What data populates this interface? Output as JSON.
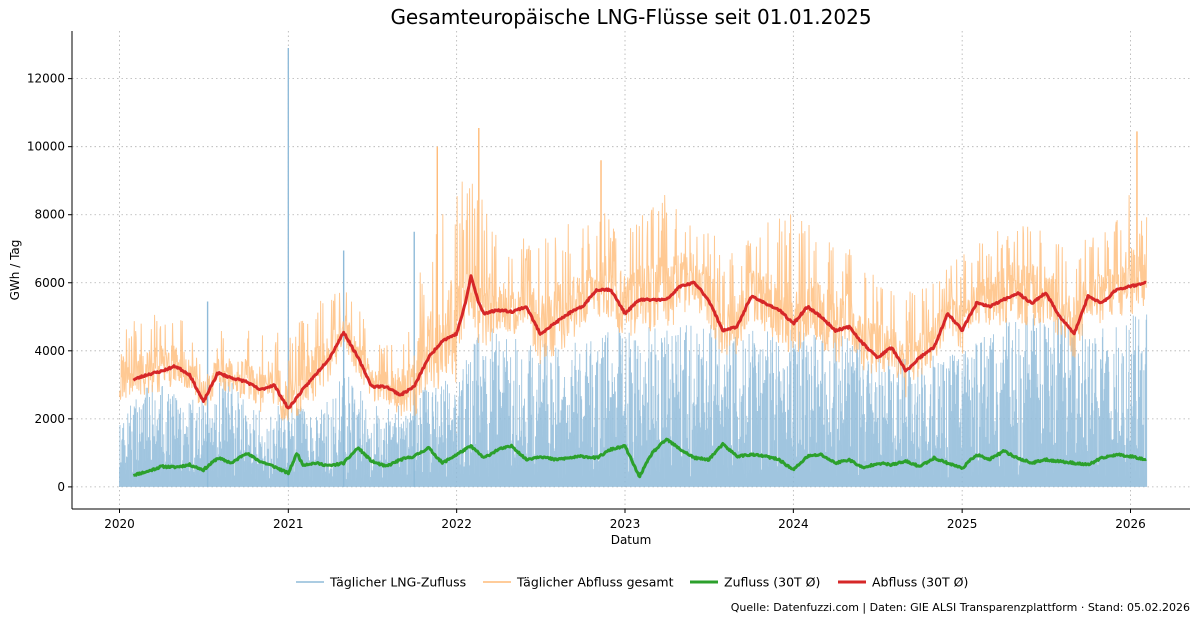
{
  "chart_data": {
    "type": "line",
    "title": "Gesamteuropäische LNG-Flüsse seit 01.01.2025",
    "xlabel": "Datum",
    "ylabel": "GWh / Tag",
    "xlim": [
      "2019-09-20",
      "2026-05-10"
    ],
    "ylim": [
      -650,
      13400
    ],
    "x_ticks": [
      "2020",
      "2021",
      "2022",
      "2023",
      "2024",
      "2025",
      "2026"
    ],
    "y_ticks": [
      0,
      2000,
      4000,
      6000,
      8000,
      10000,
      12000
    ],
    "grid": true,
    "legend_position": "bottom-center",
    "source_note": "Quelle: Datenfuzzi.com | Daten: GIE ALSI Transparenzplattform · Stand: 05.02.2026",
    "series": [
      {
        "name": "Täglicher LNG-Zufluss",
        "kind": "daily",
        "color": "#8fbbd9",
        "x": [
          "2020-01-01",
          "2020-02-15",
          "2020-04-01",
          "2020-05-15",
          "2020-07-01",
          "2020-08-15",
          "2020-10-01",
          "2020-11-15",
          "2021-01-01",
          "2021-02-15",
          "2021-04-01",
          "2021-05-15",
          "2021-07-01",
          "2021-08-15",
          "2021-10-01",
          "2021-11-15",
          "2022-01-01",
          "2022-02-15",
          "2022-04-01",
          "2022-05-15",
          "2022-07-01",
          "2022-08-15",
          "2022-10-01",
          "2022-11-15",
          "2023-01-01",
          "2023-02-15",
          "2023-04-01",
          "2023-05-15",
          "2023-07-01",
          "2023-08-15",
          "2023-10-01",
          "2023-11-15",
          "2024-01-01",
          "2024-02-15",
          "2024-04-01",
          "2024-05-15",
          "2024-07-01",
          "2024-08-15",
          "2024-10-01",
          "2024-11-15",
          "2025-01-01",
          "2025-02-15",
          "2025-04-01",
          "2025-05-15",
          "2025-07-01",
          "2025-08-15",
          "2025-10-01",
          "2025-11-15",
          "2026-01-01",
          "2026-02-05"
        ],
        "values": [
          1800,
          2700,
          3000,
          2600,
          2500,
          3200,
          2400,
          2100,
          2500,
          2200,
          2700,
          3300,
          2300,
          2200,
          2600,
          3300,
          3200,
          4600,
          4400,
          4100,
          4000,
          4200,
          4100,
          4400,
          4500,
          4600,
          4500,
          4700,
          4600,
          4500,
          4400,
          4500,
          4400,
          4300,
          4500,
          4200,
          3900,
          3700,
          3600,
          3800,
          4100,
          4400,
          4700,
          4900,
          5000,
          4800,
          4500,
          4500,
          4800,
          4900
        ],
        "peaks": [
          {
            "x": "2021-01-01",
            "y": 12900
          },
          {
            "x": "2021-10-01",
            "y": 7500
          },
          {
            "x": "2021-05-01",
            "y": 6950
          },
          {
            "x": "2020-07-10",
            "y": 5450
          }
        ]
      },
      {
        "name": "Täglicher Abfluss gesamt",
        "kind": "daily",
        "color": "#ffbb78",
        "x": [
          "2020-01-01",
          "2020-02-15",
          "2020-04-01",
          "2020-05-15",
          "2020-07-01",
          "2020-08-15",
          "2020-10-01",
          "2020-11-15",
          "2021-01-01",
          "2021-02-15",
          "2021-04-01",
          "2021-05-15",
          "2021-07-01",
          "2021-08-15",
          "2021-10-01",
          "2021-11-15",
          "2022-01-01",
          "2022-02-15",
          "2022-04-01",
          "2022-05-15",
          "2022-07-01",
          "2022-08-15",
          "2022-10-01",
          "2022-11-15",
          "2023-01-01",
          "2023-02-15",
          "2023-04-01",
          "2023-05-15",
          "2023-07-01",
          "2023-08-15",
          "2023-10-01",
          "2023-11-15",
          "2024-01-01",
          "2024-02-15",
          "2024-04-01",
          "2024-05-15",
          "2024-07-01",
          "2024-08-15",
          "2024-10-01",
          "2024-11-15",
          "2025-01-01",
          "2025-02-15",
          "2025-04-01",
          "2025-05-15",
          "2025-07-01",
          "2025-08-15",
          "2025-10-01",
          "2025-11-15",
          "2026-01-01",
          "2026-02-05"
        ],
        "values": [
          5000,
          4900,
          5300,
          5000,
          4000,
          4800,
          4700,
          5000,
          4300,
          5300,
          5700,
          6000,
          4300,
          4300,
          5800,
          7800,
          9000,
          9200,
          7200,
          7500,
          7200,
          7800,
          7600,
          8400,
          7800,
          8200,
          8700,
          8300,
          7700,
          6800,
          7700,
          8100,
          8300,
          7600,
          7700,
          6900,
          6100,
          5700,
          5800,
          6200,
          6900,
          7500,
          7800,
          8300,
          8100,
          7100,
          7300,
          7600,
          8700,
          8000
        ],
        "peaks": [
          {
            "x": "2022-02-18",
            "y": 10550
          },
          {
            "x": "2026-01-15",
            "y": 10450
          },
          {
            "x": "2021-11-20",
            "y": 10000
          },
          {
            "x": "2022-11-10",
            "y": 9600
          }
        ]
      },
      {
        "name": "Zufluss (30T Ø)",
        "kind": "rolling",
        "color": "#2ca02c",
        "x": [
          "2020-01-31",
          "2020-03-01",
          "2020-04-01",
          "2020-05-01",
          "2020-06-01",
          "2020-07-01",
          "2020-08-01",
          "2020-09-01",
          "2020-10-01",
          "2020-11-01",
          "2020-12-01",
          "2021-01-01",
          "2021-01-20",
          "2021-02-01",
          "2021-03-01",
          "2021-04-01",
          "2021-05-01",
          "2021-06-01",
          "2021-07-01",
          "2021-08-01",
          "2021-09-01",
          "2021-10-01",
          "2021-11-01",
          "2021-12-01",
          "2022-01-01",
          "2022-02-01",
          "2022-03-01",
          "2022-04-01",
          "2022-05-01",
          "2022-06-01",
          "2022-07-01",
          "2022-08-01",
          "2022-09-01",
          "2022-10-01",
          "2022-11-01",
          "2022-12-01",
          "2023-01-01",
          "2023-02-01",
          "2023-03-01",
          "2023-04-01",
          "2023-05-01",
          "2023-06-01",
          "2023-07-01",
          "2023-08-01",
          "2023-09-01",
          "2023-10-01",
          "2023-11-01",
          "2023-12-01",
          "2024-01-01",
          "2024-02-01",
          "2024-03-01",
          "2024-04-01",
          "2024-05-01",
          "2024-06-01",
          "2024-07-01",
          "2024-08-01",
          "2024-09-01",
          "2024-10-01",
          "2024-11-01",
          "2024-12-01",
          "2025-01-01",
          "2025-02-01",
          "2025-03-01",
          "2025-04-01",
          "2025-05-01",
          "2025-06-01",
          "2025-07-01",
          "2025-08-01",
          "2025-09-01",
          "2025-10-01",
          "2025-11-01",
          "2025-12-01",
          "2026-01-01",
          "2026-02-05"
        ],
        "values": [
          350,
          450,
          600,
          580,
          650,
          500,
          850,
          700,
          1000,
          750,
          600,
          400,
          1000,
          650,
          700,
          620,
          700,
          1150,
          750,
          600,
          800,
          900,
          1150,
          700,
          950,
          1200,
          850,
          1100,
          1200,
          800,
          900,
          800,
          850,
          900,
          850,
          1100,
          1200,
          300,
          1000,
          1400,
          1100,
          850,
          800,
          1250,
          900,
          950,
          900,
          800,
          500,
          900,
          950,
          700,
          800,
          550,
          700,
          650,
          750,
          600,
          850,
          700,
          550,
          950,
          800,
          1050,
          850,
          700,
          800,
          750,
          700,
          650,
          850,
          950,
          900,
          800
        ]
      },
      {
        "name": "Abfluss (30T Ø)",
        "kind": "rolling",
        "color": "#d62728",
        "x": [
          "2020-01-31",
          "2020-03-01",
          "2020-04-01",
          "2020-05-01",
          "2020-06-01",
          "2020-07-01",
          "2020-08-01",
          "2020-09-01",
          "2020-10-01",
          "2020-11-01",
          "2020-12-01",
          "2021-01-01",
          "2021-02-01",
          "2021-03-01",
          "2021-04-01",
          "2021-05-01",
          "2021-06-01",
          "2021-07-01",
          "2021-08-01",
          "2021-09-01",
          "2021-10-01",
          "2021-11-01",
          "2021-12-01",
          "2022-01-01",
          "2022-01-20",
          "2022-02-01",
          "2022-02-18",
          "2022-03-01",
          "2022-04-01",
          "2022-05-01",
          "2022-06-01",
          "2022-07-01",
          "2022-08-01",
          "2022-09-01",
          "2022-10-01",
          "2022-11-01",
          "2022-12-01",
          "2023-01-01",
          "2023-02-01",
          "2023-03-01",
          "2023-04-01",
          "2023-05-01",
          "2023-06-01",
          "2023-07-01",
          "2023-08-01",
          "2023-09-01",
          "2023-10-01",
          "2023-11-01",
          "2023-12-01",
          "2024-01-01",
          "2024-02-01",
          "2024-03-01",
          "2024-04-01",
          "2024-05-01",
          "2024-06-01",
          "2024-07-01",
          "2024-08-01",
          "2024-09-01",
          "2024-10-01",
          "2024-11-01",
          "2024-12-01",
          "2025-01-01",
          "2025-02-01",
          "2025-03-01",
          "2025-04-01",
          "2025-05-01",
          "2025-06-01",
          "2025-07-01",
          "2025-08-01",
          "2025-09-01",
          "2025-10-01",
          "2025-11-01",
          "2025-12-01",
          "2026-01-01",
          "2026-02-05"
        ],
        "values": [
          3150,
          3300,
          3400,
          3550,
          3300,
          2500,
          3350,
          3200,
          3100,
          2850,
          3000,
          2300,
          2850,
          3300,
          3800,
          4550,
          3800,
          2950,
          2950,
          2700,
          2950,
          3800,
          4300,
          4500,
          5400,
          6200,
          5400,
          5100,
          5200,
          5150,
          5300,
          4500,
          4800,
          5100,
          5300,
          5800,
          5800,
          5100,
          5500,
          5500,
          5500,
          5900,
          6000,
          5500,
          4600,
          4700,
          5600,
          5400,
          5200,
          4800,
          5300,
          5000,
          4600,
          4700,
          4200,
          3800,
          4100,
          3400,
          3800,
          4100,
          5100,
          4600,
          5400,
          5300,
          5500,
          5700,
          5400,
          5700,
          5000,
          4500,
          5600,
          5400,
          5800,
          5900,
          6000
        ]
      }
    ]
  }
}
